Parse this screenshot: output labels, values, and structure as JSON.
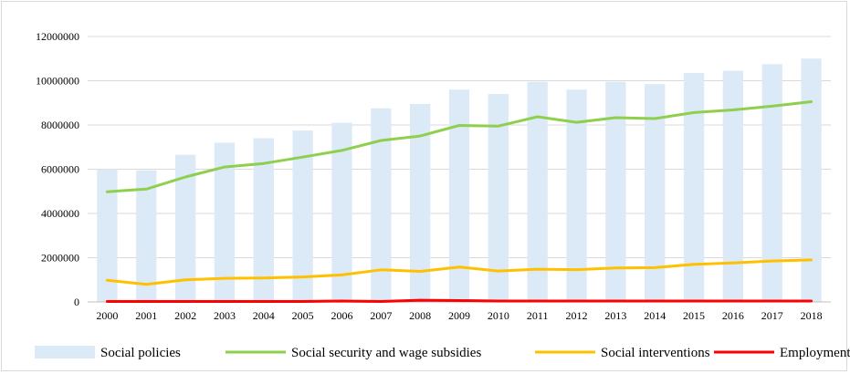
{
  "colors": {
    "bar": "#dce9f6",
    "green": "#8ecf4e",
    "yellow": "#ffc000",
    "red": "#ff0000",
    "grid": "#d9d9d9",
    "axis": "#bfbfbf"
  },
  "chart_data": {
    "type": "bar",
    "categories": [
      "2000",
      "2001",
      "2002",
      "2003",
      "2004",
      "2005",
      "2006",
      "2007",
      "2008",
      "2009",
      "2010",
      "2011",
      "2012",
      "2013",
      "2014",
      "2015",
      "2016",
      "2017",
      "2018"
    ],
    "ylim": [
      0,
      12000000
    ],
    "yticks": [
      "0",
      "2000000",
      "4000000",
      "6000000",
      "8000000",
      "10000000",
      "12000000"
    ],
    "grid": true,
    "legend_position": "bottom",
    "series": [
      {
        "name": "Social policies",
        "type": "bar",
        "values": [
          6000000,
          5950000,
          6650000,
          7200000,
          7400000,
          7750000,
          8100000,
          8750000,
          8950000,
          9600000,
          9400000,
          9950000,
          9600000,
          9950000,
          9850000,
          10350000,
          10450000,
          10750000,
          11000000
        ]
      },
      {
        "name": "Social security and wage subsidies",
        "type": "line",
        "values": [
          4980000,
          5100000,
          5650000,
          6100000,
          6260000,
          6550000,
          6850000,
          7300000,
          7500000,
          7980000,
          7950000,
          8370000,
          8120000,
          8330000,
          8290000,
          8560000,
          8680000,
          8850000,
          9050000
        ]
      },
      {
        "name": "Social interventions",
        "type": "line",
        "values": [
          980000,
          790000,
          1000000,
          1070000,
          1080000,
          1130000,
          1220000,
          1450000,
          1380000,
          1580000,
          1400000,
          1480000,
          1460000,
          1540000,
          1550000,
          1700000,
          1760000,
          1850000,
          1900000
        ]
      },
      {
        "name": "Employment",
        "type": "line",
        "values": [
          20000,
          20000,
          20000,
          20000,
          20000,
          20000,
          40000,
          20000,
          80000,
          60000,
          40000,
          40000,
          40000,
          40000,
          40000,
          40000,
          40000,
          40000,
          40000
        ]
      }
    ]
  }
}
